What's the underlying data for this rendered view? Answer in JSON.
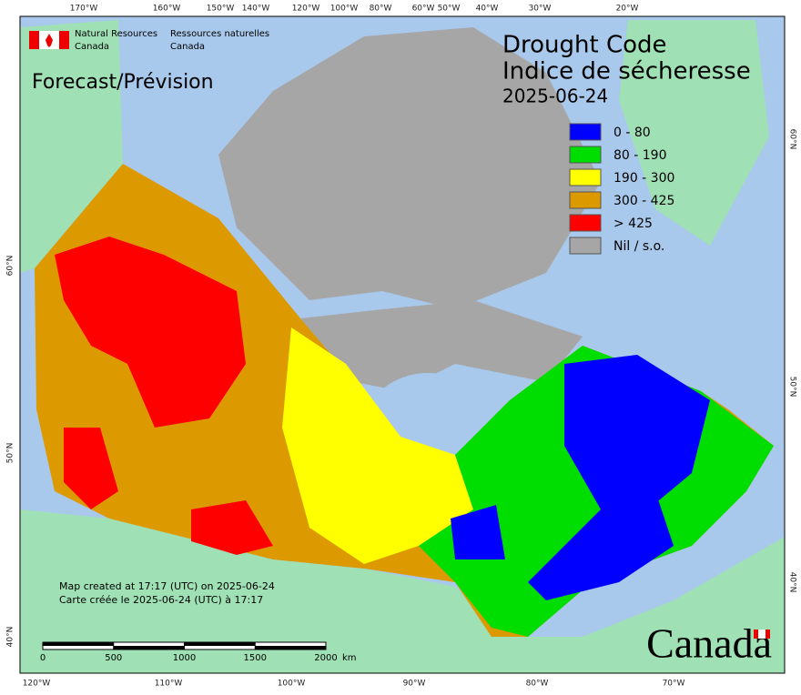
{
  "header": {
    "agency_en": "Natural Resources",
    "country_en": "Canada",
    "agency_fr": "Ressources naturelles",
    "country_fr": "Canada"
  },
  "subtitle": "Forecast/Prévision",
  "title": [
    "Drought Code",
    "Indice de sécheresse"
  ],
  "date": "2025-06-24",
  "legend": [
    {
      "label": "0 - 80",
      "color": "#0000ff"
    },
    {
      "label": "80 - 190",
      "color": "#00dd00"
    },
    {
      "label": "190 - 300",
      "color": "#ffff00"
    },
    {
      "label": "300 - 425",
      "color": "#dd9900"
    },
    {
      "label": "> 425",
      "color": "#ff0000"
    },
    {
      "label": "Nil / s.o.",
      "color": "#a6a6a6"
    }
  ],
  "top_labels": [
    "170°W",
    "160°W",
    "150°W",
    "140°W",
    "120°W",
    "100°W",
    "80°W",
    "60°W",
    "50°W",
    "40°W",
    "30°W",
    "20°W"
  ],
  "bottom_labels": [
    "120°W",
    "110°W",
    "100°W",
    "90°W",
    "80°W",
    "70°W"
  ],
  "left_labels": [
    "60°N",
    "50°N",
    "40°N"
  ],
  "right_labels": [
    "60°N",
    "50°N",
    "40°N"
  ],
  "notes": [
    "Map created at 17:17 (UTC) on 2025-06-24",
    "Carte créée le 2025-06-24 (UTC) à 17:17"
  ],
  "scale": {
    "ticks": [
      0,
      500,
      1000,
      1500,
      2000
    ],
    "unit": "km"
  },
  "wordmark": "Canada"
}
